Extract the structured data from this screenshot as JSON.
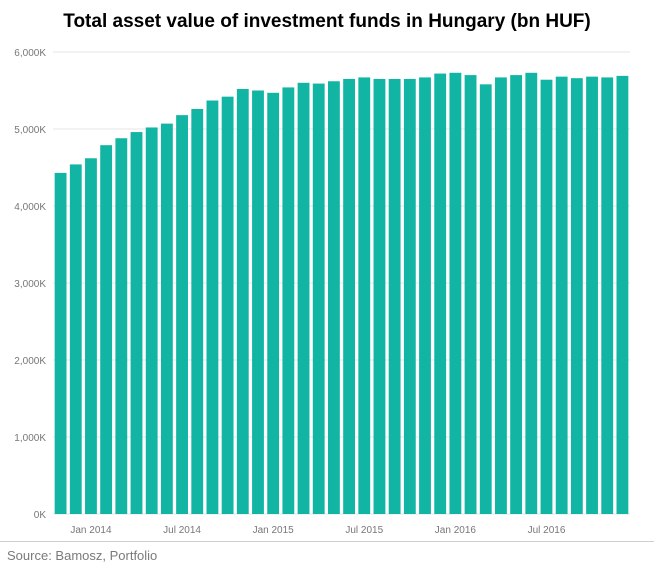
{
  "chart_data": {
    "type": "bar",
    "title": "Total asset value of investment funds in Hungary (bn HUF)",
    "xlabel": "",
    "ylabel": "",
    "ylim": [
      0,
      6000
    ],
    "y_tick_values": [
      0,
      1000,
      2000,
      3000,
      4000,
      5000,
      6000
    ],
    "y_tick_labels": [
      "0K",
      "1,000K",
      "2,000K",
      "3,000K",
      "4,000K",
      "5,000K",
      "6,000K"
    ],
    "categories": [
      "Nov 2013",
      "Dec 2013",
      "Jan 2014",
      "Feb 2014",
      "Mar 2014",
      "Apr 2014",
      "May 2014",
      "Jun 2014",
      "Jul 2014",
      "Aug 2014",
      "Sep 2014",
      "Oct 2014",
      "Nov 2014",
      "Dec 2014",
      "Jan 2015",
      "Feb 2015",
      "Mar 2015",
      "Apr 2015",
      "May 2015",
      "Jun 2015",
      "Jul 2015",
      "Aug 2015",
      "Sep 2015",
      "Oct 2015",
      "Nov 2015",
      "Dec 2015",
      "Jan 2016",
      "Feb 2016",
      "Mar 2016",
      "Apr 2016",
      "May 2016",
      "Jun 2016",
      "Jul 2016",
      "Aug 2016",
      "Sep 2016",
      "Oct 2016",
      "Nov 2016",
      "Dec 2016"
    ],
    "values": [
      4430,
      4540,
      4620,
      4790,
      4880,
      4960,
      5020,
      5070,
      5180,
      5260,
      5370,
      5420,
      5520,
      5500,
      5470,
      5540,
      5600,
      5590,
      5620,
      5650,
      5670,
      5650,
      5650,
      5650,
      5670,
      5720,
      5730,
      5700,
      5580,
      5670,
      5700,
      5730,
      5640,
      5680,
      5660,
      5680,
      5670,
      5690
    ],
    "x_tick_labels": [
      {
        "label": "Jan 2014",
        "category": "Jan 2014"
      },
      {
        "label": "Jul 2014",
        "category": "Jul 2014"
      },
      {
        "label": "Jan 2015",
        "category": "Jan 2015"
      },
      {
        "label": "Jul 2015",
        "category": "Jul 2015"
      },
      {
        "label": "Jan 2016",
        "category": "Jan 2016"
      },
      {
        "label": "Jul 2016",
        "category": "Jul 2016"
      }
    ],
    "grid": true,
    "legend": "none",
    "bar_color": "#12b5a3",
    "grid_color": "#e6e6e6"
  },
  "source": "Source: Bamosz, Portfolio"
}
